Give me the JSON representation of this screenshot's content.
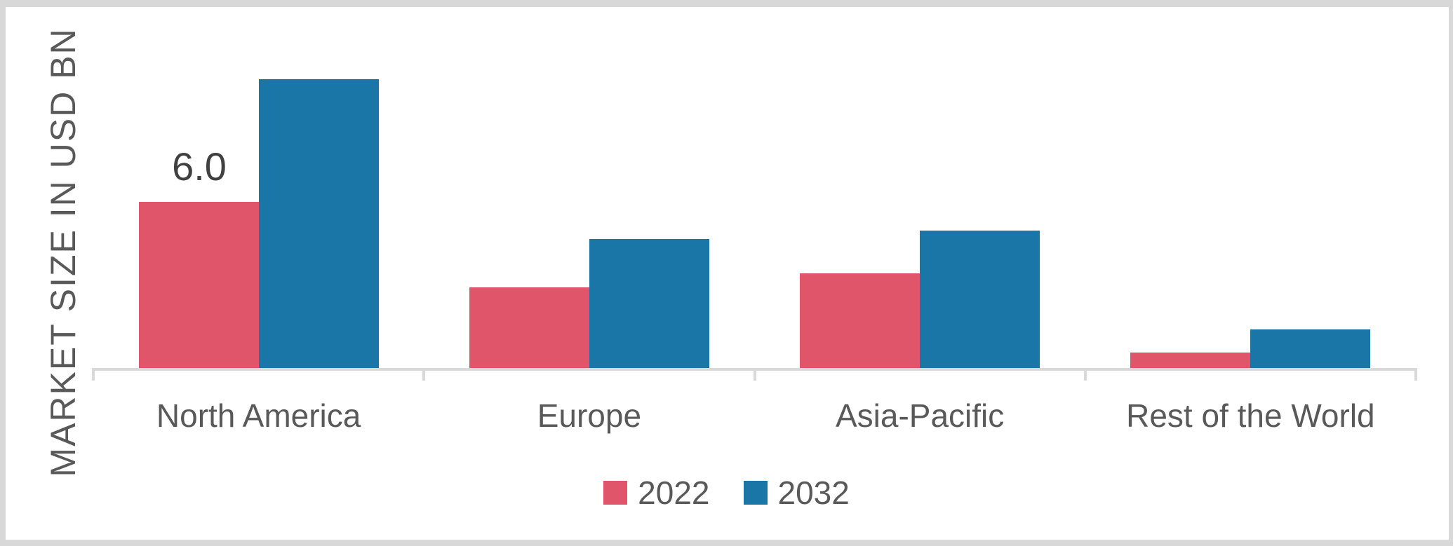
{
  "chart_data": {
    "type": "bar",
    "title": "",
    "xlabel": "",
    "ylabel": "MARKET SIZE IN USD BN",
    "categories": [
      "North America",
      "Europe",
      "Asia-Pacific",
      "Rest of the World"
    ],
    "series": [
      {
        "name": "2022",
        "color": "#e0556a",
        "values": [
          6.0,
          2.9,
          3.4,
          0.55
        ]
      },
      {
        "name": "2032",
        "color": "#1b76a8",
        "values": [
          10.4,
          4.65,
          4.95,
          1.4
        ]
      }
    ],
    "ylim": [
      0,
      11
    ],
    "grid": false,
    "legend_position": "bottom",
    "data_labels": [
      {
        "series": "2022",
        "category": "North America",
        "text": "6.0"
      }
    ],
    "axis_color": "#d9d9d9",
    "text_color": "#595959",
    "data_label_color": "#404040"
  }
}
